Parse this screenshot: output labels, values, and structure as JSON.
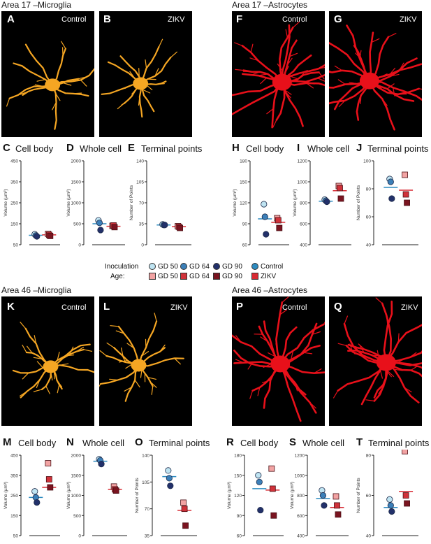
{
  "sections": {
    "a17_microglia": "Area 17 –Microglia",
    "a17_astrocytes": "Area 17 –Astrocytes",
    "a46_microglia": "Area 46 –Microglia",
    "a46_astrocytes": "Area 46 –Astrocytes"
  },
  "image_panels": [
    {
      "letter": "A",
      "cond": "Control",
      "cell": "microglia"
    },
    {
      "letter": "B",
      "cond": "ZIKV",
      "cell": "microglia"
    },
    {
      "letter": "F",
      "cond": "Control",
      "cell": "astrocyte"
    },
    {
      "letter": "G",
      "cond": "ZIKV",
      "cell": "astrocyte"
    },
    {
      "letter": "K",
      "cond": "Control",
      "cell": "microglia"
    },
    {
      "letter": "L",
      "cond": "ZIKV",
      "cell": "microglia"
    },
    {
      "letter": "P",
      "cond": "Control",
      "cell": "astrocyte"
    },
    {
      "letter": "Q",
      "cond": "ZIKV",
      "cell": "astrocyte"
    }
  ],
  "colors": {
    "microglia": "#f5a623",
    "astrocyte": "#e8101a",
    "control_gd50": "#bfe4f2",
    "control_gd64": "#3b7fb8",
    "control_gd90": "#22306a",
    "zikv_gd50": "#f2a3a3",
    "zikv_gd64": "#d0323a",
    "zikv_gd90": "#7a1420",
    "control_mean": "#2d8bc0",
    "zikv_mean": "#d82a33"
  },
  "legend": {
    "label_line1": "Inoculation",
    "label_line2": "Age:",
    "control_items": [
      "GD 50",
      "GD 64",
      "GD 90"
    ],
    "zikv_items": [
      "GD 50",
      "GD 64",
      "GD 90"
    ],
    "control_label": "Control",
    "zikv_label": "ZIKV"
  },
  "chart_data": [
    {
      "letter": "C",
      "title": "Cell body",
      "type": "scatter",
      "ylabel": "Volume (µm³)",
      "yticks": [
        "450",
        "350",
        "250",
        "150",
        "50"
      ],
      "ylim": [
        50,
        450
      ],
      "control": [
        100,
        94,
        90
      ],
      "zikv": [
        102,
        97,
        92
      ],
      "control_mean": 95,
      "zikv_mean": 97
    },
    {
      "letter": "D",
      "title": "Whole cell",
      "type": "scatter",
      "ylabel": "Volume (µm³)",
      "yticks": [
        "2000",
        "1500",
        "1000",
        "500",
        "0"
      ],
      "ylim": [
        0,
        2000
      ],
      "control": [
        580,
        520,
        350
      ],
      "zikv": [
        450,
        460,
        420
      ],
      "control_mean": 500,
      "zikv_mean": 440
    },
    {
      "letter": "E",
      "title": "Terminal points",
      "type": "scatter",
      "ylabel": "Number of Points",
      "yticks": [
        "140",
        "105",
        "70",
        "35",
        "0"
      ],
      "ylim": [
        0,
        140
      ],
      "control": [
        34,
        33,
        33
      ],
      "zikv": [
        31,
        30,
        28
      ],
      "control_mean": 33,
      "zikv_mean": 30
    },
    {
      "letter": "H",
      "title": "Cell body",
      "type": "scatter",
      "ylabel": "Volume (µm³)",
      "yticks": [
        "180",
        "150",
        "120",
        "90",
        "60"
      ],
      "ylim": [
        60,
        180
      ],
      "control": [
        118,
        100,
        75
      ],
      "zikv": [
        98,
        95,
        84
      ],
      "control_mean": 97,
      "zikv_mean": 92
    },
    {
      "letter": "I",
      "title": "Whole cell",
      "type": "scatter",
      "ylabel": "Volume (µm³)",
      "yticks": [
        "1200",
        "1000",
        "800",
        "600",
        "400"
      ],
      "ylim": [
        400,
        1200
      ],
      "control": [
        830,
        820,
        810
      ],
      "zikv": [
        960,
        940,
        840
      ],
      "control_mean": 815,
      "zikv_mean": 915
    },
    {
      "letter": "J",
      "title": "Terminal points",
      "type": "scatter",
      "ylabel": "Number of Points",
      "yticks": [
        "100",
        "80",
        "60",
        "40"
      ],
      "ylim": [
        40,
        100
      ],
      "control": [
        87,
        85,
        73
      ],
      "zikv": [
        90,
        76,
        70
      ],
      "control_mean": 81,
      "zikv_mean": 79
    },
    {
      "letter": "M",
      "title": "Cell body",
      "type": "scatter",
      "ylabel": "Volume (µm³)",
      "yticks": [
        "450",
        "350",
        "250",
        "150",
        "50"
      ],
      "ylim": [
        50,
        450
      ],
      "control": [
        270,
        240,
        215
      ],
      "zikv": [
        410,
        330,
        290
      ],
      "control_mean": 240,
      "zikv_mean": 290
    },
    {
      "letter": "N",
      "title": "Whole cell",
      "type": "scatter",
      "ylabel": "Volume (µm³)",
      "yticks": [
        "2000",
        "1500",
        "1000",
        "500",
        "0"
      ],
      "ylim": [
        0,
        2000
      ],
      "control": [
        1900,
        1870,
        1780
      ],
      "zikv": [
        1220,
        1150,
        1120
      ],
      "control_mean": 1850,
      "zikv_mean": 1150
    },
    {
      "letter": "O",
      "title": "Terminal points",
      "type": "scatter",
      "ylabel": "Number of Points",
      "yticks": [
        "140",
        "105",
        "70",
        "35"
      ],
      "ylim": [
        35,
        140
      ],
      "control": [
        120,
        110,
        100
      ],
      "zikv": [
        78,
        70,
        48
      ],
      "control_mean": 112,
      "zikv_mean": 68
    },
    {
      "letter": "R",
      "title": "Cell body",
      "type": "scatter",
      "ylabel": "Volume (µm³)",
      "yticks": [
        "180",
        "150",
        "120",
        "90",
        "60"
      ],
      "ylim": [
        60,
        180
      ],
      "control": [
        150,
        140,
        98
      ],
      "zikv": [
        160,
        130,
        90
      ],
      "control_mean": 130,
      "zikv_mean": 128
    },
    {
      "letter": "S",
      "title": "Whole cell",
      "type": "scatter",
      "ylabel": "Volume (µm³)",
      "yticks": [
        "1200",
        "1000",
        "800",
        "600",
        "400"
      ],
      "ylim": [
        400,
        1200
      ],
      "control": [
        850,
        800,
        700
      ],
      "zikv": [
        790,
        700,
        610
      ],
      "control_mean": 770,
      "zikv_mean": 680
    },
    {
      "letter": "T",
      "title": "Terminal points",
      "type": "scatter",
      "ylabel": "Number of Points",
      "yticks": [
        "80",
        "60",
        "40"
      ],
      "ylim": [
        40,
        80
      ],
      "control": [
        58,
        55,
        52
      ],
      "zikv": [
        82,
        60,
        56
      ],
      "control_mean": 54,
      "zikv_mean": 62
    }
  ]
}
